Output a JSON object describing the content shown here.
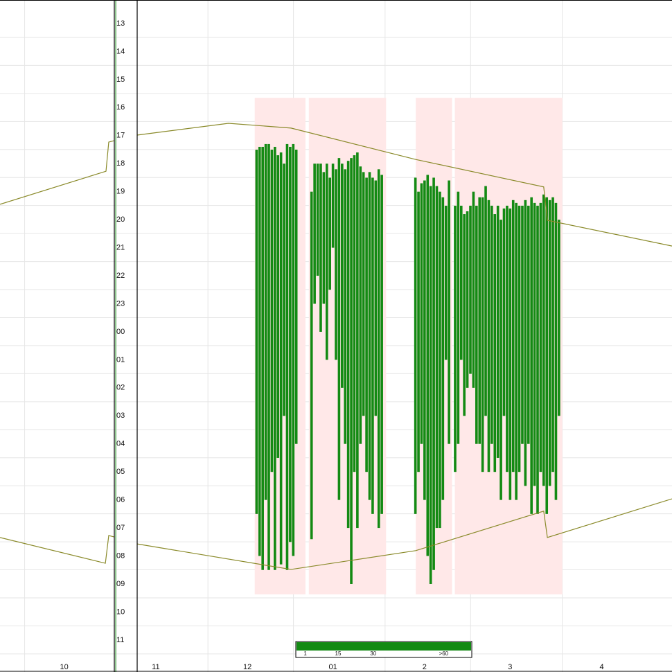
{
  "chart_data": {
    "type": "activity",
    "xlim": [
      0,
      220
    ],
    "ylim": [
      -0.84,
      23.14
    ],
    "grid": true,
    "xticks": [
      {
        "value": 21,
        "label": "10"
      },
      {
        "value": 51,
        "label": "11"
      },
      {
        "value": 81,
        "label": "12"
      },
      {
        "value": 109,
        "label": "01"
      },
      {
        "value": 139,
        "label": "2"
      },
      {
        "value": 167,
        "label": "3"
      },
      {
        "value": 197,
        "label": "4"
      }
    ],
    "yticks": [
      {
        "value": 0,
        "label": "13"
      },
      {
        "value": 1,
        "label": "14"
      },
      {
        "value": 2,
        "label": "15"
      },
      {
        "value": 3,
        "label": "16"
      },
      {
        "value": 4,
        "label": "17"
      },
      {
        "value": 5,
        "label": "18"
      },
      {
        "value": 6,
        "label": "19"
      },
      {
        "value": 7,
        "label": "20"
      },
      {
        "value": 8,
        "label": "21"
      },
      {
        "value": 9,
        "label": "22"
      },
      {
        "value": 10,
        "label": "23"
      },
      {
        "value": 11,
        "label": "00"
      },
      {
        "value": 12,
        "label": "01"
      },
      {
        "value": 13,
        "label": "02"
      },
      {
        "value": 14,
        "label": "03"
      },
      {
        "value": 15,
        "label": "04"
      },
      {
        "value": 16,
        "label": "05"
      },
      {
        "value": 17,
        "label": "06"
      },
      {
        "value": 18,
        "label": "07"
      },
      {
        "value": 19,
        "label": "08"
      },
      {
        "value": 20,
        "label": "09"
      },
      {
        "value": 21,
        "label": "10"
      },
      {
        "value": 22,
        "label": "11"
      }
    ],
    "bands": {
      "color": "#ffe8e8",
      "x": [
        83.4,
        101.1,
        136.1,
        148.9
      ],
      "x_end": [
        100,
        126.4,
        148,
        184.1
      ],
      "start": [
        2.65,
        2.65,
        2.65,
        2.65
      ],
      "end": [
        20.37,
        20.37,
        20.37,
        20.37
      ]
    },
    "lines": [
      {
        "color": "#8a8a2a",
        "x": [
          0,
          34.7,
          35.6,
          37.4,
          null,
          44.9,
          74.8,
          95.3,
          136.1,
          178,
          179.2,
          220
        ],
        "values": [
          6.45,
          5.27,
          4.23,
          4.18,
          null,
          3.98,
          3.56,
          3.73,
          4.85,
          5.83,
          7.02,
          7.94
        ]
      },
      {
        "color": "#8a8a2a",
        "x": [
          0,
          34.5,
          35.6,
          37.4,
          null,
          44.9,
          95.3,
          136.1,
          178,
          179.2,
          220
        ],
        "values": [
          18.34,
          19.26,
          18.27,
          18.32,
          null,
          18.57,
          19.48,
          18.81,
          17.4,
          18.34,
          16.96
        ]
      }
    ],
    "segments": {
      "color": "#138a13",
      "x": [
        84,
        85,
        86,
        87,
        88,
        89,
        90,
        91,
        92,
        93,
        94,
        95,
        96,
        97,
        102,
        103,
        104,
        105,
        106,
        107,
        108,
        109,
        110,
        111,
        112,
        113,
        114,
        115,
        116,
        117,
        118,
        119,
        120,
        121,
        122,
        123,
        124,
        125,
        136,
        137,
        138,
        139,
        140,
        141,
        142,
        143,
        144,
        145,
        146,
        147,
        149,
        150,
        151,
        152,
        153,
        154,
        155,
        156,
        157,
        158,
        159,
        160,
        161,
        162,
        163,
        164,
        165,
        166,
        167,
        168,
        169,
        170,
        171,
        172,
        173,
        174,
        175,
        176,
        177,
        178,
        179,
        180,
        181,
        182,
        183
      ],
      "start": [
        4.5,
        4.4,
        4.4,
        4.3,
        4.3,
        4.5,
        4.4,
        4.7,
        4.6,
        5,
        4.3,
        4.4,
        4.3,
        4.5,
        6,
        5,
        5,
        5,
        5.3,
        5,
        5.5,
        5,
        5.2,
        4.8,
        5,
        5.2,
        4.9,
        4.8,
        4.7,
        4.6,
        5.1,
        5.3,
        5.5,
        5.3,
        5.5,
        5.6,
        5.2,
        5.4,
        5.5,
        6,
        5.7,
        5.6,
        5.4,
        5.8,
        5.5,
        5.8,
        6,
        6.2,
        6.5,
        5.6,
        6.5,
        6,
        6.5,
        6.8,
        6.7,
        6.5,
        6,
        6.5,
        6.2,
        6.2,
        5.8,
        6.3,
        6.5,
        6.8,
        6.5,
        7,
        6.6,
        6.5,
        6.6,
        6.3,
        6.4,
        6.5,
        6.5,
        6.3,
        6.5,
        6.2,
        6.4,
        6.5,
        6.4,
        6.1,
        6.2,
        6.3,
        6.2,
        6.4,
        7
      ],
      "end": [
        17.5,
        19,
        19.5,
        17,
        19.5,
        16,
        19.5,
        15.5,
        19.3,
        14,
        19.5,
        18.5,
        19,
        15,
        18.4,
        10,
        9,
        11,
        10,
        12,
        9.5,
        8,
        12,
        17,
        13,
        15,
        18,
        20,
        16,
        18,
        15,
        14,
        16,
        17,
        17.5,
        14,
        18,
        17.5,
        17.5,
        16,
        15,
        17,
        19,
        20,
        19.5,
        18,
        18,
        17,
        12,
        15,
        16,
        15,
        12,
        14,
        13,
        12.5,
        13,
        15,
        15,
        16,
        14,
        16,
        15,
        16,
        15.5,
        17,
        14,
        16,
        17,
        16,
        17,
        16,
        15,
        16.5,
        15,
        17.5,
        16.5,
        17.5,
        16,
        16.5,
        17.5,
        16.5,
        16,
        17,
        14
      ]
    },
    "colorbar": {
      "color": "#138a13",
      "lim": [
        -3,
        72
      ],
      "ticks": [
        1,
        15,
        30,
        {
          "value": 60,
          "label": ">60"
        }
      ]
    }
  }
}
